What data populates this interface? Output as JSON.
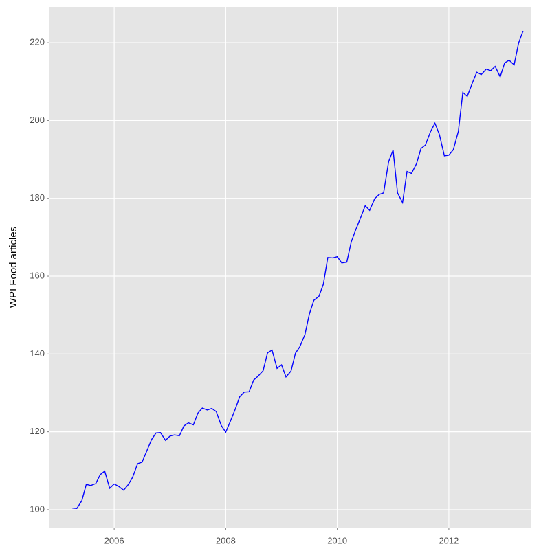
{
  "chart_data": {
    "type": "line",
    "ylabel": "WPI  Food articles",
    "x": [
      2005.25,
      2005.33,
      2005.42,
      2005.5,
      2005.58,
      2005.67,
      2005.75,
      2005.83,
      2005.92,
      2006.0,
      2006.08,
      2006.17,
      2006.25,
      2006.33,
      2006.42,
      2006.5,
      2006.58,
      2006.67,
      2006.75,
      2006.83,
      2006.92,
      2007.0,
      2007.08,
      2007.17,
      2007.25,
      2007.33,
      2007.42,
      2007.5,
      2007.58,
      2007.67,
      2007.75,
      2007.83,
      2007.92,
      2008.0,
      2008.08,
      2008.17,
      2008.25,
      2008.33,
      2008.42,
      2008.5,
      2008.58,
      2008.67,
      2008.75,
      2008.83,
      2008.92,
      2009.0,
      2009.08,
      2009.17,
      2009.25,
      2009.33,
      2009.42,
      2009.5,
      2009.58,
      2009.67,
      2009.75,
      2009.83,
      2009.92,
      2010.0,
      2010.08,
      2010.17,
      2010.25,
      2010.33,
      2010.42,
      2010.5,
      2010.58,
      2010.67,
      2010.75,
      2010.83,
      2010.92,
      2011.0,
      2011.08,
      2011.17,
      2011.25,
      2011.33,
      2011.42,
      2011.5,
      2011.58,
      2011.67,
      2011.75,
      2011.83,
      2011.92,
      2012.0,
      2012.08,
      2012.17,
      2012.25,
      2012.33,
      2012.42,
      2012.5,
      2012.58,
      2012.67,
      2012.75,
      2012.83,
      2012.92,
      2013.0,
      2013.08,
      2013.17,
      2013.25,
      2013.33
    ],
    "series": [
      {
        "color": "#0000ff",
        "values": [
          100.4,
          100.3,
          102.3,
          106.5,
          106.2,
          106.7,
          109.0,
          109.9,
          105.5,
          106.6,
          106.0,
          105.0,
          106.4,
          108.3,
          111.8,
          112.2,
          114.9,
          118.0,
          119.7,
          119.8,
          117.8,
          118.9,
          119.2,
          119.0,
          121.5,
          122.3,
          121.8,
          124.8,
          126.1,
          125.6,
          126.0,
          125.2,
          121.6,
          119.9,
          122.6,
          125.8,
          129.0,
          130.2,
          130.3,
          133.3,
          134.3,
          135.7,
          140.3,
          141.0,
          136.3,
          137.2,
          134.1,
          135.6,
          140.2,
          141.9,
          145.0,
          150.3,
          153.8,
          154.8,
          157.9,
          164.8,
          164.7,
          165.0,
          163.4,
          163.6,
          168.8,
          171.9,
          175.1,
          178.1,
          176.9,
          179.9,
          181.0,
          181.4,
          189.4,
          192.4,
          181.4,
          178.9,
          186.9,
          186.4,
          188.9,
          192.8,
          193.7,
          197.1,
          199.3,
          196.4,
          190.9,
          191.1,
          192.5,
          197.2,
          207.2,
          206.2,
          209.6,
          212.4,
          211.8,
          213.2,
          212.8,
          213.9,
          211.2,
          214.8,
          215.5,
          214.3,
          219.9,
          223.0
        ]
      }
    ],
    "xlim": [
      2004.84,
      2013.48
    ],
    "ylim": [
      95.4,
      229.2
    ],
    "xticks": [
      2006,
      2008,
      2010,
      2012
    ],
    "yticks": [
      100,
      120,
      140,
      160,
      180,
      200,
      220
    ],
    "grid": true
  }
}
